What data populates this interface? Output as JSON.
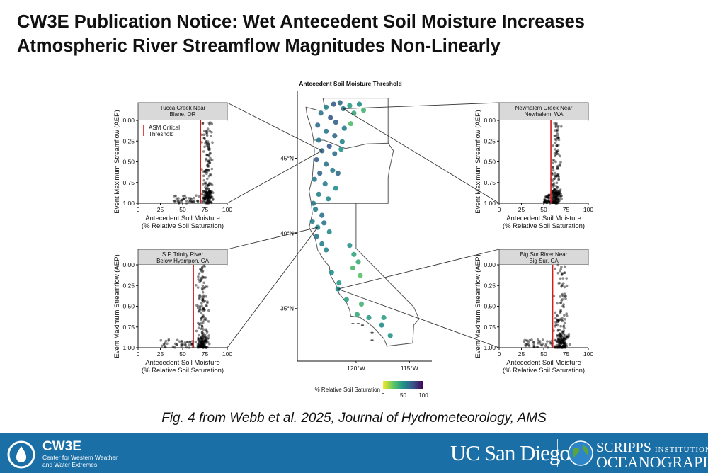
{
  "title": {
    "line1": "CW3E Publication Notice: Wet Antecedent Soil Moisture Increases",
    "line2": "Atmospheric River Streamflow Magnitudes Non-Linearly"
  },
  "caption": "Fig. 4 from Webb et al. 2025, Journal of Hydrometeorology, AMS",
  "footer": {
    "cw3e_name": "CW3E",
    "cw3e_sub1": "Center for Western Weather",
    "cw3e_sub2": "and Water Extremes",
    "ucsd": "UC San Diego",
    "scripps_line1": "SCRIPPS",
    "scripps_line1b": "INSTITUTION OF",
    "scripps_line2": "OCEANOGRAPHY"
  },
  "colors": {
    "footer_bg": "#1a6fa6",
    "threshold_line": "#d7191c",
    "points": "#000000",
    "viridis": [
      "#fde725",
      "#5ec962",
      "#21918c",
      "#3b528b",
      "#440154"
    ]
  },
  "chart_data": [
    {
      "type": "map",
      "title": "Antecedent Soil Moisture Threshold",
      "lat_ticks": [
        "45°N",
        "40°N",
        "35°N"
      ],
      "lon_ticks": [
        "120°W",
        "115°W"
      ],
      "colorbar": {
        "label": "% Relative Soil Saturation",
        "ticks": [
          "0",
          "50",
          "100"
        ],
        "range": [
          0,
          100
        ],
        "palette": "viridis"
      },
      "sites": [
        {
          "lon": -123.3,
          "lat": 48.0,
          "v": 62
        },
        {
          "lon": -122.8,
          "lat": 48.4,
          "v": 55
        },
        {
          "lon": -122.1,
          "lat": 48.6,
          "v": 70
        },
        {
          "lon": -121.5,
          "lat": 48.7,
          "v": 66
        },
        {
          "lon": -121.2,
          "lat": 48.3,
          "v": 60
        },
        {
          "lon": -120.6,
          "lat": 48.5,
          "v": 45
        },
        {
          "lon": -120.2,
          "lat": 48.0,
          "v": 40
        },
        {
          "lon": -119.7,
          "lat": 48.6,
          "v": 52
        },
        {
          "lon": -119.3,
          "lat": 48.2,
          "v": 35
        },
        {
          "lon": -122.4,
          "lat": 47.7,
          "v": 72
        },
        {
          "lon": -121.9,
          "lat": 47.4,
          "v": 68
        },
        {
          "lon": -123.6,
          "lat": 47.2,
          "v": 64
        },
        {
          "lon": -121.1,
          "lat": 47.0,
          "v": 58
        },
        {
          "lon": -120.5,
          "lat": 47.3,
          "v": 30
        },
        {
          "lon": -122.8,
          "lat": 46.8,
          "v": 61
        },
        {
          "lon": -122.0,
          "lat": 46.5,
          "v": 66
        },
        {
          "lon": -123.5,
          "lat": 46.2,
          "v": 59
        },
        {
          "lon": -121.3,
          "lat": 46.1,
          "v": 55
        },
        {
          "lon": -122.5,
          "lat": 45.8,
          "v": 71
        },
        {
          "lon": -123.2,
          "lat": 45.5,
          "v": 67
        },
        {
          "lon": -122.0,
          "lat": 45.3,
          "v": 63
        },
        {
          "lon": -121.4,
          "lat": 45.6,
          "v": 48
        },
        {
          "lon": -123.7,
          "lat": 44.9,
          "v": 69
        },
        {
          "lon": -122.8,
          "lat": 44.6,
          "v": 62
        },
        {
          "lon": -122.2,
          "lat": 44.2,
          "v": 58
        },
        {
          "lon": -121.7,
          "lat": 44.0,
          "v": 65
        },
        {
          "lon": -123.4,
          "lat": 44.0,
          "v": 66
        },
        {
          "lon": -123.9,
          "lat": 43.6,
          "v": 60
        },
        {
          "lon": -122.9,
          "lat": 43.3,
          "v": 57
        },
        {
          "lon": -121.9,
          "lat": 43.0,
          "v": 50
        },
        {
          "lon": -123.5,
          "lat": 42.6,
          "v": 55
        },
        {
          "lon": -122.6,
          "lat": 42.3,
          "v": 53
        },
        {
          "lon": -124.0,
          "lat": 42.0,
          "v": 60
        },
        {
          "lon": -123.8,
          "lat": 41.6,
          "v": 58
        },
        {
          "lon": -123.2,
          "lat": 41.2,
          "v": 62
        },
        {
          "lon": -124.1,
          "lat": 40.8,
          "v": 56
        },
        {
          "lon": -123.6,
          "lat": 40.4,
          "v": 54
        },
        {
          "lon": -123.0,
          "lat": 40.7,
          "v": 61
        },
        {
          "lon": -122.5,
          "lat": 40.1,
          "v": 52
        },
        {
          "lon": -123.7,
          "lat": 39.8,
          "v": 59
        },
        {
          "lon": -123.2,
          "lat": 39.3,
          "v": 57
        },
        {
          "lon": -122.8,
          "lat": 38.9,
          "v": 55
        },
        {
          "lon": -120.6,
          "lat": 39.2,
          "v": 48
        },
        {
          "lon": -120.2,
          "lat": 38.6,
          "v": 42
        },
        {
          "lon": -119.8,
          "lat": 38.1,
          "v": 38
        },
        {
          "lon": -120.3,
          "lat": 37.7,
          "v": 33
        },
        {
          "lon": -119.6,
          "lat": 37.2,
          "v": 28
        },
        {
          "lon": -122.3,
          "lat": 37.4,
          "v": 50
        },
        {
          "lon": -121.6,
          "lat": 36.7,
          "v": 46
        },
        {
          "lon": -121.7,
          "lat": 36.3,
          "v": 54
        },
        {
          "lon": -120.9,
          "lat": 35.6,
          "v": 44
        },
        {
          "lon": -119.5,
          "lat": 35.3,
          "v": 35
        },
        {
          "lon": -119.9,
          "lat": 34.6,
          "v": 40
        },
        {
          "lon": -118.8,
          "lat": 34.4,
          "v": 46
        },
        {
          "lon": -117.6,
          "lat": 33.9,
          "v": 52
        },
        {
          "lon": -117.4,
          "lat": 34.4,
          "v": 45
        },
        {
          "lon": -116.8,
          "lat": 33.2,
          "v": 48
        }
      ]
    },
    {
      "type": "scatter",
      "title": "Tucca Creek Near Blane, OR",
      "title_lines": [
        "Tucca Creek Near",
        "Blane, OR"
      ],
      "xlabel": "Antecedent Soil Moisture",
      "xlabel2": "(% Relative Soil Saturation)",
      "ylabel": "Event Maximum Streamflow (AEP)",
      "xlim": [
        0,
        100
      ],
      "ylim": [
        0,
        1
      ],
      "x_ticks": [
        "0",
        "25",
        "50",
        "75",
        "100"
      ],
      "y_ticks": [
        "0.00",
        "0.25",
        "0.50",
        "0.75",
        "1.00"
      ],
      "threshold": 70,
      "legend": "ASM Critical Threshold",
      "legend_lines": [
        "ASM Critical",
        "Threshold"
      ],
      "cluster": {
        "xmin": 68,
        "xmax": 90,
        "center": 78
      },
      "tail": {
        "xmin": 40,
        "xmax": 70
      }
    },
    {
      "type": "scatter",
      "title": "S.F. Trinity River Below Hyampon, CA",
      "title_lines": [
        "S.F. Trinity River",
        "Below Hyampon, CA"
      ],
      "xlabel": "Antecedent Soil Moisture",
      "xlabel2": "(% Relative Soil Saturation)",
      "ylabel": "Event Maximum Streamflow (AEP)",
      "xlim": [
        0,
        100
      ],
      "ylim": [
        0,
        1
      ],
      "x_ticks": [
        "0",
        "25",
        "50",
        "75",
        "100"
      ],
      "y_ticks": [
        "0.00",
        "0.25",
        "0.50",
        "0.75",
        "1.00"
      ],
      "threshold": 62,
      "cluster": {
        "xmin": 60,
        "xmax": 85,
        "center": 72
      },
      "tail": {
        "xmin": 25,
        "xmax": 62
      }
    },
    {
      "type": "scatter",
      "title": "Newhalem Creek Near Newhalem, WA",
      "title_lines": [
        "Newhalem Creek Near",
        "Newhalem, WA"
      ],
      "xlabel": "Antecedent Soil Moisture",
      "xlabel2": "(% Relative Soil Saturation)",
      "ylabel": "Event Maximum Streamflow (AEP)",
      "xlim": [
        0,
        100
      ],
      "ylim": [
        0,
        1
      ],
      "x_ticks": [
        "0",
        "25",
        "50",
        "75",
        "100"
      ],
      "y_ticks": [
        "0.00",
        "0.25",
        "0.50",
        "0.75",
        "1.00"
      ],
      "threshold": 58,
      "cluster": {
        "xmin": 55,
        "xmax": 75,
        "center": 64
      },
      "tail": {
        "xmin": 50,
        "xmax": 58
      }
    },
    {
      "type": "scatter",
      "title": "Big Sur River Near Big Sur, CA",
      "title_lines": [
        "Big Sur River Near",
        "Big Sur, CA"
      ],
      "xlabel": "Antecedent Soil Moisture",
      "xlabel2": "(% Relative Soil Saturation)",
      "ylabel": "Event Maximum Streamflow (AEP)",
      "xlim": [
        0,
        100
      ],
      "ylim": [
        0,
        1
      ],
      "x_ticks": [
        "0",
        "25",
        "50",
        "75",
        "100"
      ],
      "y_ticks": [
        "0.00",
        "0.25",
        "0.50",
        "0.75",
        "1.00"
      ],
      "threshold": 60,
      "cluster": {
        "xmin": 58,
        "xmax": 85,
        "center": 70
      },
      "tail": {
        "xmin": 28,
        "xmax": 60
      }
    }
  ]
}
